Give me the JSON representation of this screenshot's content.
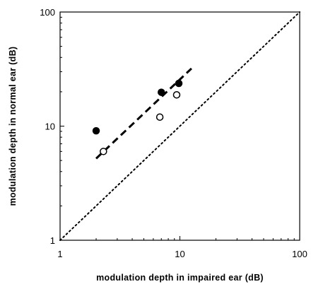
{
  "chart_data": {
    "type": "scatter",
    "xlabel": "modulation depth in impaired ear (dB)",
    "ylabel": "modulation depth in normal ear (dB)",
    "x_scale": "log",
    "y_scale": "log",
    "xlim": [
      1,
      100
    ],
    "ylim": [
      1,
      100
    ],
    "x_ticks": [
      "1",
      "10",
      "100"
    ],
    "y_ticks": [
      "1",
      "10",
      "100"
    ],
    "grid": false,
    "series": [
      {
        "marker": "filled-circle",
        "color": "#000000",
        "points": [
          {
            "x": 2.0,
            "y": 9.1
          },
          {
            "x": 7.0,
            "y": 19.8
          },
          {
            "x": 9.8,
            "y": 23.7
          }
        ]
      },
      {
        "marker": "open-circle",
        "color": "#000000",
        "points": [
          {
            "x": 2.3,
            "y": 6.0
          },
          {
            "x": 6.8,
            "y": 12.0
          },
          {
            "x": 9.4,
            "y": 18.8
          }
        ]
      }
    ],
    "lines": [
      {
        "style": "dashed",
        "points": [
          {
            "x": 2.0,
            "y": 5.2
          },
          {
            "x": 12.5,
            "y": 32.0
          }
        ]
      },
      {
        "style": "dotted",
        "points": [
          {
            "x": 1.0,
            "y": 1.0
          },
          {
            "x": 100.0,
            "y": 100.0
          }
        ]
      }
    ]
  }
}
